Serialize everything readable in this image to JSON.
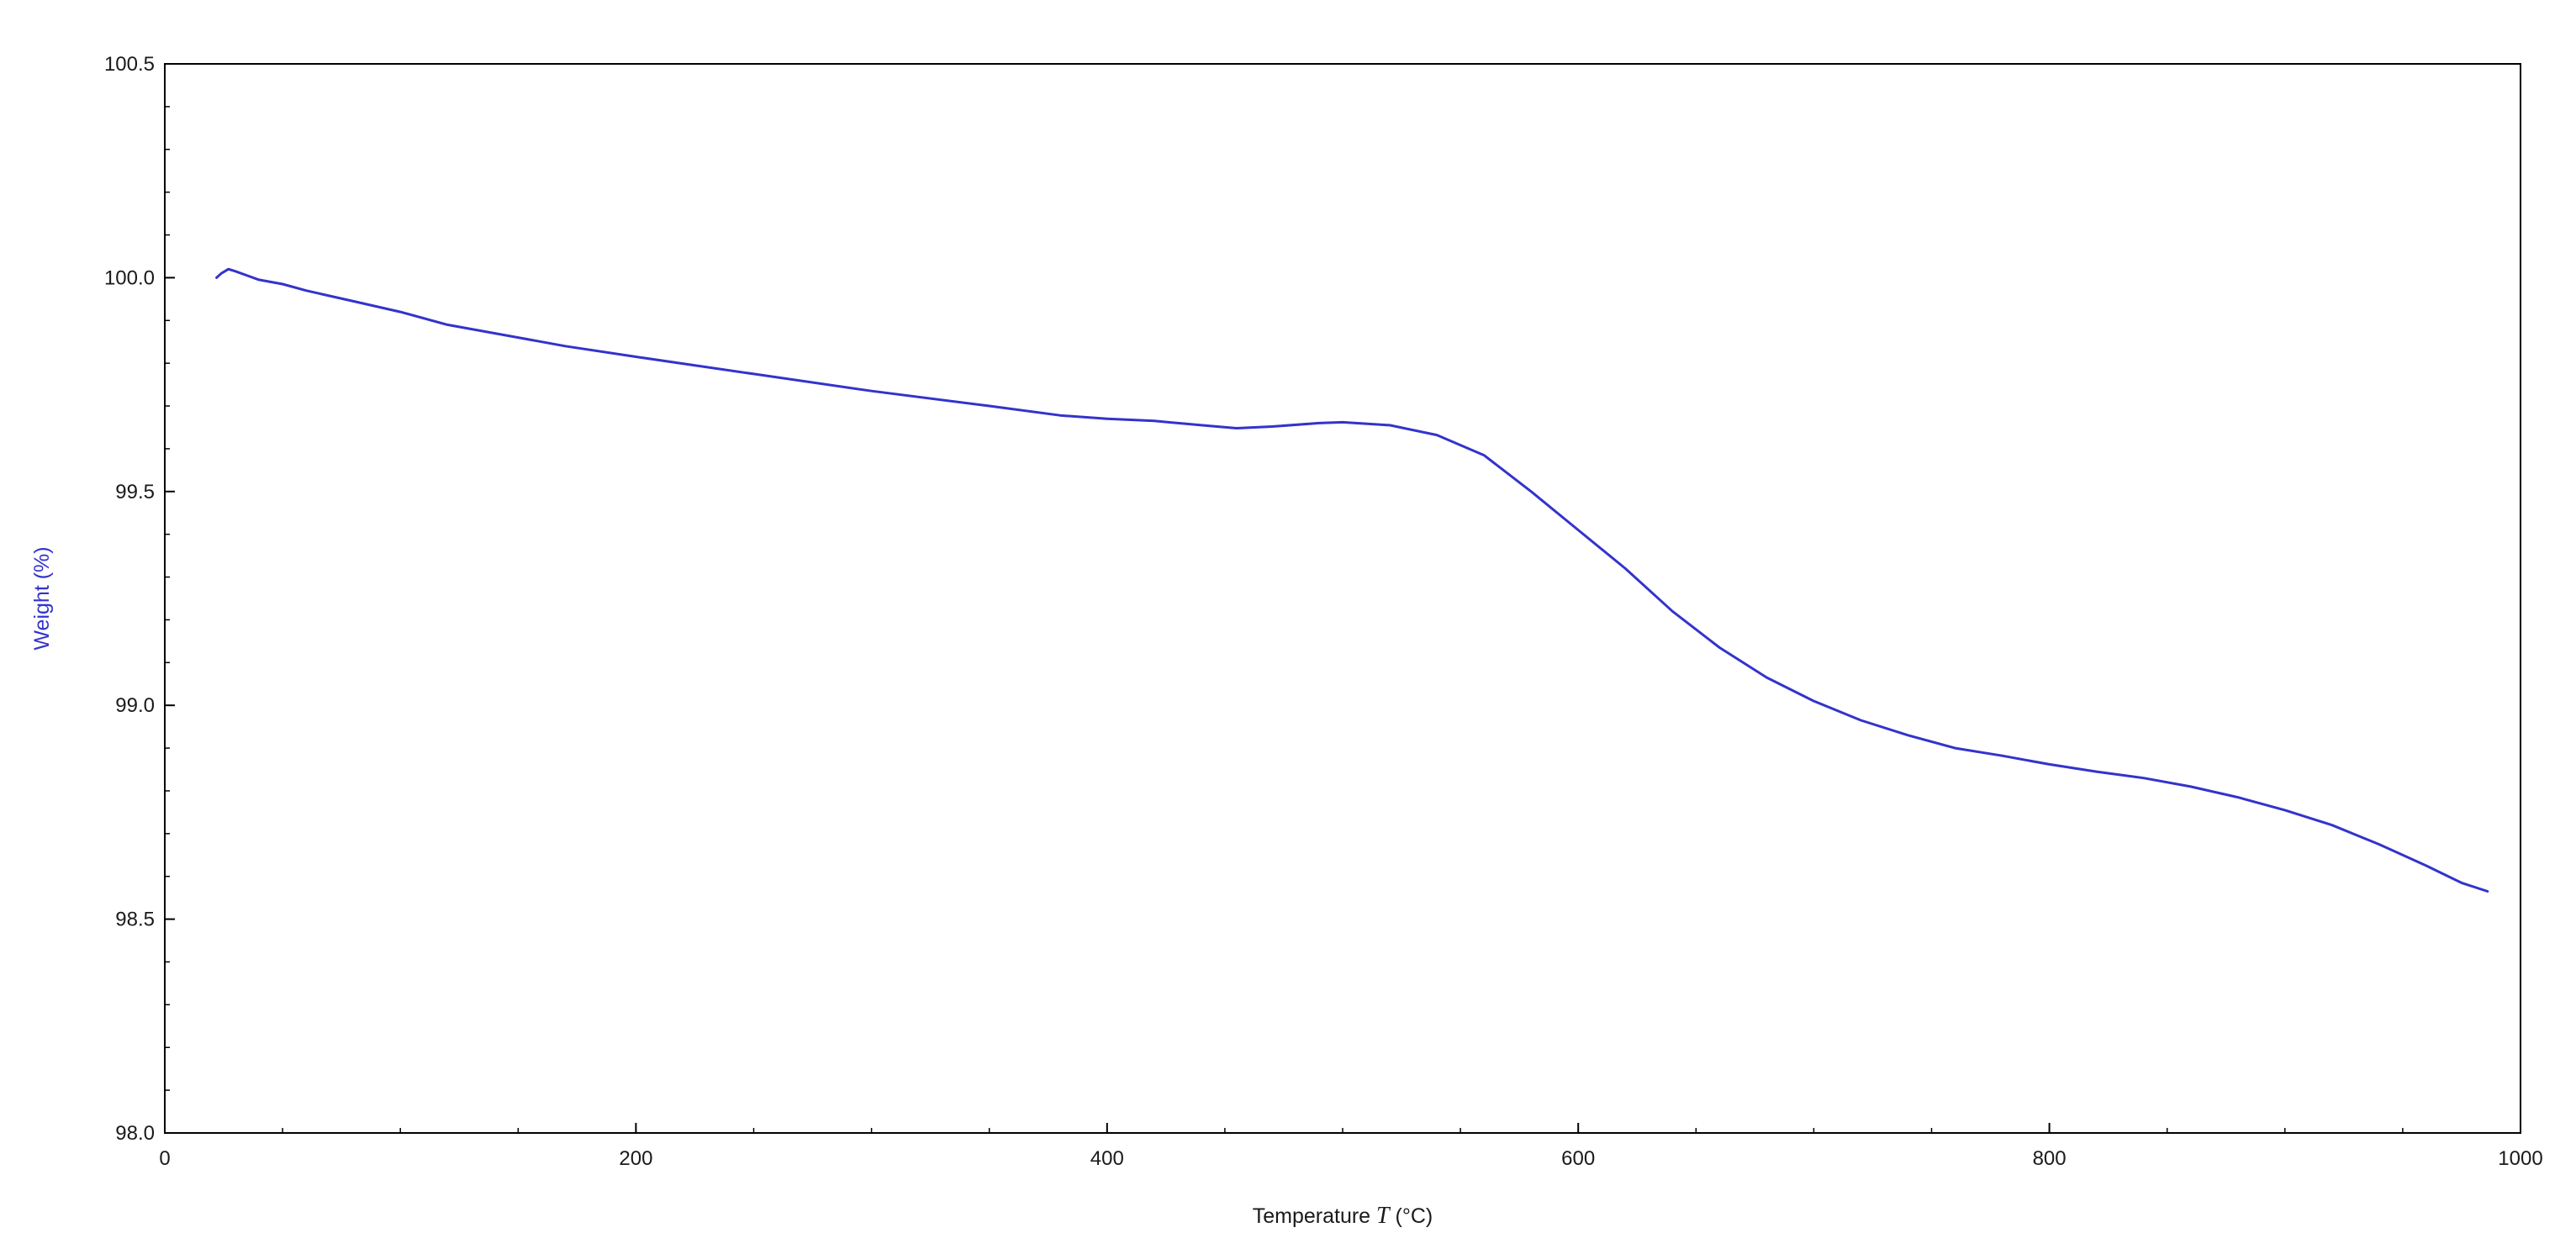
{
  "chart_data": {
    "type": "line",
    "title": "",
    "xlabel_prefix": "Temperature ",
    "xlabel_var": "T",
    "xlabel_suffix": " (°C)",
    "ylabel": "Weight (%)",
    "xlim": [
      0,
      1000
    ],
    "ylim": [
      98.0,
      100.5
    ],
    "grid": false,
    "legend": "none",
    "line_color": "#3333cc",
    "ylabel_color": "#3333cc",
    "x_ticks": [
      0,
      200,
      400,
      600,
      800,
      1000
    ],
    "x_tick_labels": [
      "0",
      "200",
      "400",
      "600",
      "800",
      "1000"
    ],
    "y_ticks": [
      98.0,
      98.5,
      99.0,
      99.5,
      100.0,
      100.5
    ],
    "y_tick_labels": [
      "98.0",
      "98.5",
      "99.0",
      "99.5",
      "100.0",
      "100.5"
    ],
    "series": [
      {
        "x": [
          22,
          24,
          27,
          30,
          35,
          40,
          50,
          60,
          80,
          100,
          120,
          150,
          170,
          200,
          250,
          300,
          350,
          380,
          400,
          420,
          440,
          455,
          470,
          490,
          500,
          520,
          540,
          560,
          580,
          600,
          620,
          640,
          660,
          680,
          700,
          720,
          740,
          760,
          780,
          800,
          820,
          840,
          860,
          880,
          900,
          920,
          940,
          960,
          975,
          986
        ],
        "y": [
          100.0,
          100.01,
          100.02,
          100.015,
          100.005,
          99.995,
          99.985,
          99.97,
          99.945,
          99.92,
          99.89,
          99.86,
          99.84,
          99.815,
          99.775,
          99.735,
          99.7,
          99.678,
          99.67,
          99.665,
          99.655,
          99.648,
          99.652,
          99.66,
          99.662,
          99.655,
          99.632,
          99.585,
          99.5,
          99.41,
          99.32,
          99.22,
          99.135,
          99.065,
          99.01,
          98.965,
          98.93,
          98.9,
          98.882,
          98.862,
          98.845,
          98.83,
          98.81,
          98.785,
          98.755,
          98.72,
          98.675,
          98.625,
          98.585,
          98.565
        ]
      }
    ]
  }
}
